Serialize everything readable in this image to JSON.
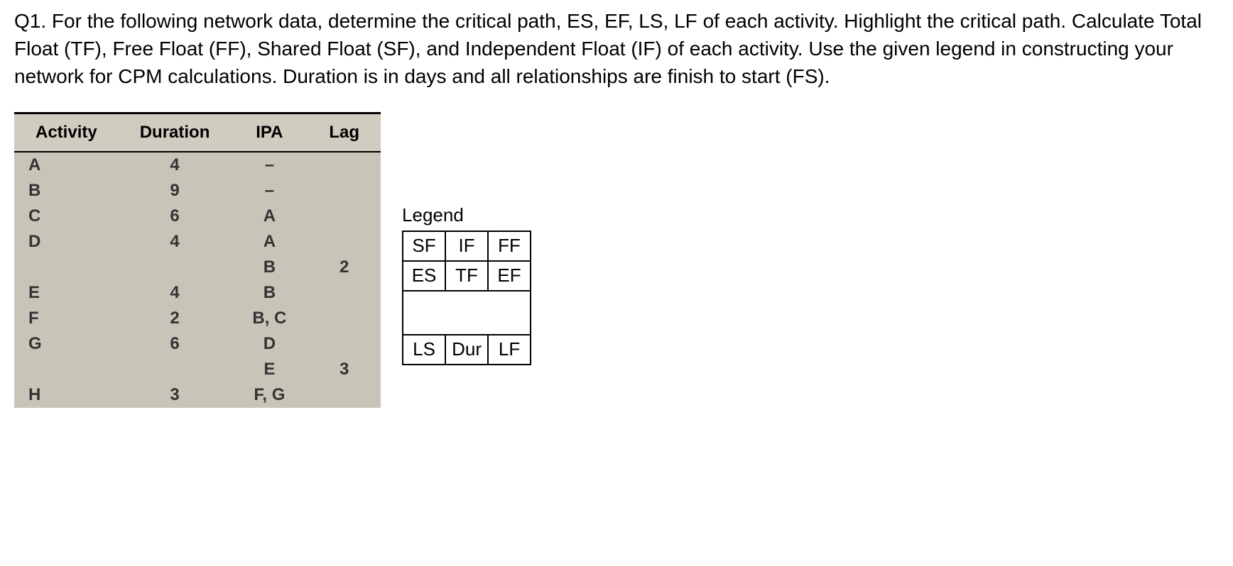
{
  "question": {
    "text": "Q1. For the following network data, determine the critical path, ES, EF, LS, LF of each activity. Highlight the critical path. Calculate Total Float (TF), Free Float (FF), Shared Float (SF), and Independent Float (IF) of each activity. Use the given legend in constructing your network for CPM calculations. Duration is in days and all relationships are finish to start (FS)."
  },
  "activity_table": {
    "headers": {
      "col1": "Activity",
      "col2": "Duration",
      "col3": "IPA",
      "col4": "Lag"
    },
    "rows": [
      {
        "activity": "A",
        "duration": "4",
        "ipa": "–",
        "lag": ""
      },
      {
        "activity": "B",
        "duration": "9",
        "ipa": "–",
        "lag": ""
      },
      {
        "activity": "C",
        "duration": "6",
        "ipa": "A",
        "lag": ""
      },
      {
        "activity": "D",
        "duration": "4",
        "ipa": "A",
        "lag": ""
      },
      {
        "activity": "",
        "duration": "",
        "ipa": "B",
        "lag": "2"
      },
      {
        "activity": "E",
        "duration": "4",
        "ipa": "B",
        "lag": ""
      },
      {
        "activity": "F",
        "duration": "2",
        "ipa": "B, C",
        "lag": ""
      },
      {
        "activity": "G",
        "duration": "6",
        "ipa": "D",
        "lag": ""
      },
      {
        "activity": "",
        "duration": "",
        "ipa": "E",
        "lag": "3"
      },
      {
        "activity": "H",
        "duration": "3",
        "ipa": "F, G",
        "lag": ""
      }
    ],
    "styling": {
      "background_color": "#c8c4b8",
      "header_background": "#d0ccc0",
      "border_color": "#000000",
      "font_size": 24
    }
  },
  "legend": {
    "title": "Legend",
    "row1": {
      "c1": "SF",
      "c2": "IF",
      "c3": "FF"
    },
    "row2": {
      "c1": "ES",
      "c2": "TF",
      "c3": "EF"
    },
    "row3": {
      "c1": "LS",
      "c2": "Dur",
      "c3": "LF"
    },
    "styling": {
      "border_color": "#000000",
      "font_size": 26
    }
  }
}
